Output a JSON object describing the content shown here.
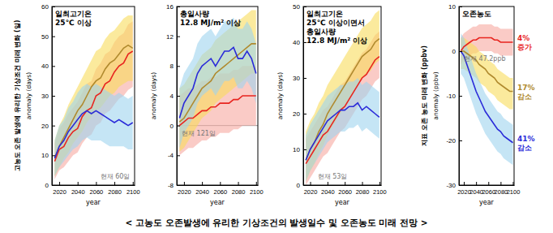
{
  "chart_data": [
    {
      "type": "line",
      "title": [
        "일최고기온",
        "25℃ 이상"
      ],
      "xlabel": "year",
      "ylabel": "anomaly (days)",
      "ylabel_outer": "고농도 오존 발생에 유리한 기상조건 미래 변화 (일)",
      "annotations": [
        "현재 60일"
      ],
      "x": [
        2015,
        2020,
        2025,
        2030,
        2035,
        2040,
        2045,
        2050,
        2055,
        2060,
        2065,
        2070,
        2075,
        2080,
        2085,
        2090,
        2095,
        2100
      ],
      "xlim": [
        2012,
        2102
      ],
      "xticks": [
        2020,
        2040,
        2060,
        2080,
        2100
      ],
      "ylim": [
        0,
        60
      ],
      "yticks": [
        0,
        10,
        20,
        30,
        40,
        50,
        60
      ],
      "series": [
        {
          "color": "#e8251f",
          "values": [
            8,
            12,
            13,
            16,
            18,
            19,
            23,
            25,
            26,
            30,
            31,
            34,
            35,
            38,
            40,
            41,
            44,
            45
          ],
          "lower": [
            2,
            5,
            6,
            8,
            10,
            11,
            14,
            16,
            17,
            20,
            21,
            24,
            25,
            27,
            29,
            30,
            32,
            33
          ],
          "upper": [
            14,
            19,
            21,
            24,
            26,
            28,
            31,
            34,
            35,
            39,
            41,
            44,
            45,
            48,
            50,
            51,
            54,
            55
          ]
        },
        {
          "color": "#b08a2e",
          "values": [
            9,
            13,
            16,
            19,
            22,
            25,
            27,
            30,
            33,
            35,
            36,
            39,
            41,
            42,
            44,
            46,
            47,
            46
          ],
          "lower": [
            3,
            6,
            9,
            11,
            14,
            16,
            18,
            21,
            23,
            25,
            26,
            28,
            30,
            31,
            33,
            34,
            35,
            35
          ],
          "upper": [
            15,
            20,
            23,
            27,
            30,
            33,
            36,
            39,
            42,
            45,
            46,
            49,
            51,
            52,
            54,
            56,
            57,
            57
          ]
        },
        {
          "color": "#2b2bd9",
          "values": [
            9,
            13,
            15,
            18,
            20,
            22,
            24,
            25,
            24,
            25,
            24,
            23,
            22,
            21,
            22,
            21,
            20,
            21
          ],
          "lower": [
            3,
            6,
            8,
            10,
            12,
            13,
            15,
            16,
            15,
            15,
            15,
            14,
            13,
            13,
            13,
            13,
            12,
            12
          ],
          "upper": [
            15,
            20,
            22,
            26,
            28,
            31,
            33,
            34,
            33,
            34,
            33,
            32,
            31,
            30,
            31,
            30,
            29,
            30
          ]
        }
      ]
    },
    {
      "type": "line",
      "title": [
        "총일사량",
        "12.8 MJ/m² 이상"
      ],
      "xlabel": "year",
      "ylabel": "anomaly (days)",
      "annotations": [
        "현재 121일"
      ],
      "reference_y": 0,
      "x": [
        2015,
        2020,
        2025,
        2030,
        2035,
        2040,
        2045,
        2050,
        2055,
        2060,
        2065,
        2070,
        2075,
        2080,
        2085,
        2090,
        2095,
        2100
      ],
      "xlim": [
        2012,
        2102
      ],
      "xticks": [
        2020,
        2040,
        2060,
        2080,
        2100
      ],
      "ylim": [
        -8,
        16
      ],
      "yticks": [
        -8,
        -4,
        0,
        4,
        8,
        12,
        16
      ],
      "series": [
        {
          "color": "#e8251f",
          "values": [
            0,
            0.5,
            1,
            1,
            1.5,
            2,
            2,
            2.5,
            2.5,
            3,
            3,
            3,
            3.5,
            3.5,
            4,
            4,
            4,
            4
          ],
          "lower": [
            -4,
            -3.5,
            -3,
            -3,
            -2.5,
            -2,
            -2,
            -1.5,
            -1.5,
            -1,
            -1,
            -1,
            -0.5,
            -0.5,
            0,
            0,
            0,
            0
          ],
          "upper": [
            4,
            4.5,
            5,
            5,
            5.5,
            6,
            6,
            6.5,
            6.5,
            7,
            7,
            7,
            7.5,
            7.5,
            8,
            8,
            8,
            8
          ]
        },
        {
          "color": "#b08a2e",
          "values": [
            0.5,
            1,
            2,
            3,
            4,
            5,
            5.5,
            6,
            7,
            7.5,
            8,
            8.5,
            9,
            9.5,
            10,
            10.5,
            11,
            11
          ],
          "lower": [
            -3.5,
            -3,
            -2,
            -1,
            0,
            1,
            1.5,
            2,
            3,
            3.5,
            4,
            4.5,
            5,
            5.5,
            6,
            6.5,
            7,
            7
          ],
          "upper": [
            5,
            5.5,
            6.5,
            7.5,
            8.5,
            9.5,
            10,
            10.5,
            11.5,
            12,
            12.5,
            13,
            13.5,
            14,
            14.5,
            15,
            15.5,
            15.5
          ]
        },
        {
          "color": "#2b2bd9",
          "values": [
            1,
            3,
            4,
            5,
            7,
            8,
            8.5,
            9,
            8,
            9,
            10,
            10,
            10.5,
            9,
            9,
            10,
            9,
            7
          ],
          "lower": [
            -3,
            -1,
            0,
            1,
            3,
            4,
            4.5,
            5,
            4,
            5,
            6,
            6,
            6.5,
            5,
            5,
            6,
            5,
            3
          ],
          "upper": [
            5,
            7,
            8,
            9,
            11,
            12,
            12.5,
            13,
            12,
            13,
            14,
            14,
            14.5,
            13,
            13,
            14,
            13,
            11
          ]
        }
      ]
    },
    {
      "type": "line",
      "title": [
        "일최고기온",
        "25℃ 이상이면서",
        "총일사량",
        "12.8 MJ/m² 이상"
      ],
      "xlabel": "year",
      "ylabel": "anomaly (days)",
      "annotations": [
        "현재 53일"
      ],
      "x": [
        2015,
        2020,
        2025,
        2030,
        2035,
        2040,
        2045,
        2050,
        2055,
        2060,
        2065,
        2070,
        2075,
        2080,
        2085,
        2090,
        2095,
        2100
      ],
      "xlim": [
        2012,
        2102
      ],
      "xticks": [
        2020,
        2040,
        2060,
        2080,
        2100
      ],
      "ylim": [
        0,
        50
      ],
      "yticks": [
        0,
        10,
        20,
        30,
        40,
        50
      ],
      "series": [
        {
          "color": "#e8251f",
          "values": [
            6,
            8,
            10,
            12,
            14,
            15,
            17,
            19,
            21,
            22,
            24,
            26,
            28,
            30,
            31,
            33,
            35,
            36
          ],
          "lower": [
            0,
            2,
            4,
            6,
            8,
            9,
            11,
            13,
            15,
            16,
            18,
            20,
            22,
            24,
            25,
            27,
            29,
            30
          ],
          "upper": [
            13,
            15,
            17,
            19,
            21,
            22,
            24,
            26,
            28,
            29,
            31,
            33,
            35,
            37,
            38,
            40,
            42,
            43
          ]
        },
        {
          "color": "#b08a2e",
          "values": [
            7,
            10,
            12,
            15,
            17,
            20,
            22,
            24,
            26,
            28,
            30,
            32,
            34,
            36,
            37,
            38,
            40,
            41
          ],
          "lower": [
            1,
            4,
            6,
            9,
            11,
            14,
            16,
            18,
            20,
            22,
            24,
            26,
            28,
            30,
            31,
            32,
            34,
            35
          ],
          "upper": [
            15,
            18,
            20,
            23,
            25,
            28,
            30,
            32,
            34,
            36,
            38,
            40,
            42,
            44,
            45,
            46,
            48,
            49
          ]
        },
        {
          "color": "#2b2bd9",
          "values": [
            7,
            10,
            12,
            14,
            16,
            18,
            19,
            20,
            21,
            21,
            22,
            22,
            23,
            21,
            22,
            21,
            20,
            19
          ],
          "lower": [
            1,
            4,
            6,
            8,
            10,
            12,
            13,
            14,
            15,
            15,
            16,
            16,
            17,
            15,
            16,
            15,
            14,
            13
          ],
          "upper": [
            14,
            17,
            19,
            21,
            23,
            25,
            26,
            27,
            28,
            28,
            29,
            29,
            30,
            28,
            29,
            28,
            27,
            26
          ]
        }
      ]
    },
    {
      "type": "line",
      "title": [
        "오존농도"
      ],
      "xlabel": "year",
      "ylabel": "anomaly (ppbv)",
      "ylabel_outer": "지표 오존 농도 미래 변화 (ppbv)",
      "annotations": [
        "현재 47.2ppb"
      ],
      "series_labels": [
        [
          "4%",
          "증가"
        ],
        [
          "17%",
          "감소"
        ],
        [
          "41%",
          "감소"
        ]
      ],
      "x": [
        2015,
        2020,
        2025,
        2030,
        2035,
        2040,
        2045,
        2050,
        2055,
        2060,
        2065,
        2070,
        2075,
        2080,
        2085,
        2090,
        2095,
        2100
      ],
      "xlim": [
        2012,
        2102
      ],
      "xticks": [
        2020,
        2040,
        2060,
        2080,
        2100
      ],
      "ylim": [
        -30,
        10
      ],
      "yticks": [
        -30,
        -20,
        -10,
        0,
        10
      ],
      "series": [
        {
          "color": "#e8251f",
          "values": [
            0,
            1,
            1.5,
            2,
            2.5,
            2.5,
            3,
            3,
            3,
            3,
            3,
            2.5,
            2.5,
            2,
            2,
            2,
            2,
            2
          ],
          "lower": [
            -3,
            -2,
            -1.5,
            -1,
            -0.5,
            -0.5,
            0,
            0,
            0,
            0,
            0,
            -0.5,
            -0.5,
            -1,
            -1,
            -1,
            -1,
            -1
          ],
          "upper": [
            3,
            4,
            4.5,
            5,
            5.5,
            5.5,
            6,
            6,
            6,
            6,
            6,
            5.5,
            5.5,
            5,
            5,
            5,
            5,
            5
          ]
        },
        {
          "color": "#b08a2e",
          "values": [
            0,
            0,
            -0.5,
            -1,
            -1.5,
            -2,
            -3,
            -3.5,
            -4,
            -5,
            -5.5,
            -6,
            -7,
            -7.5,
            -8,
            -8.5,
            -9,
            -9
          ],
          "lower": [
            -4,
            -4,
            -4.5,
            -5,
            -5.5,
            -6,
            -7,
            -7.5,
            -8,
            -9,
            -9.5,
            -10,
            -11,
            -11.5,
            -12,
            -12.5,
            -13,
            -13
          ],
          "upper": [
            3,
            3,
            2.5,
            2,
            1.5,
            1,
            0,
            -0.5,
            -1,
            -2,
            -2.5,
            -3,
            -4,
            -4.5,
            -5,
            -5.5,
            -6,
            -6
          ]
        },
        {
          "color": "#2b2bd9",
          "values": [
            0,
            -1,
            -3,
            -5,
            -7,
            -9,
            -10.5,
            -12,
            -13.5,
            -14.5,
            -15.5,
            -16.5,
            -17.5,
            -18,
            -19,
            -19.5,
            -20,
            -20.5
          ],
          "lower": [
            -5,
            -6,
            -8,
            -10,
            -12,
            -14,
            -15.5,
            -17,
            -18.5,
            -19.5,
            -20.5,
            -21.5,
            -22.5,
            -23,
            -24,
            -24.5,
            -25,
            -25.5
          ],
          "upper": [
            4,
            3,
            1,
            -1,
            -3,
            -5,
            -6.5,
            -8,
            -9.5,
            -10.5,
            -11.5,
            -12.5,
            -13.5,
            -14,
            -15,
            -15.5,
            -16,
            -16.5
          ]
        }
      ]
    }
  ],
  "caption": "< 고농도 오존발생에 유리한 기상조건의 발생일수 및 오존농도 미래 전망 >"
}
